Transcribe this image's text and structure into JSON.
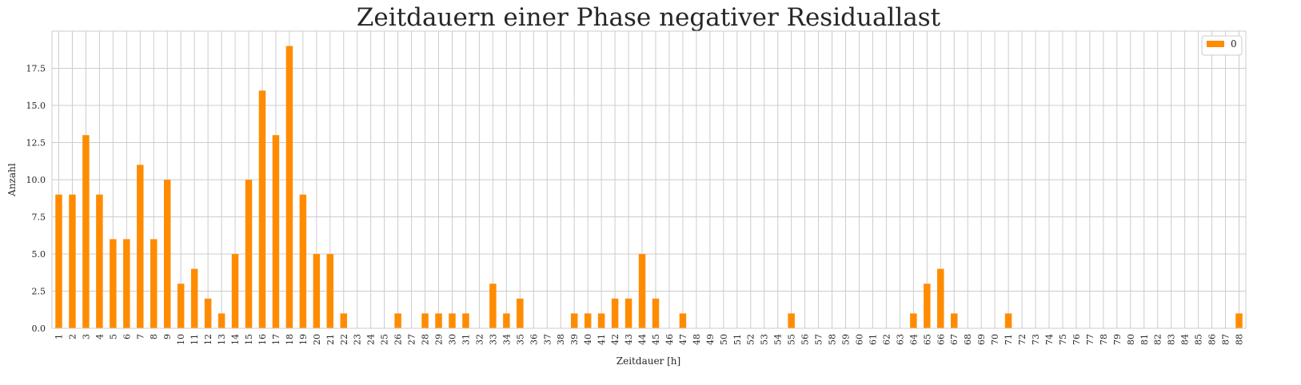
{
  "chart_data": {
    "type": "bar",
    "title": "Zeitdauern einer Phase negativer Residuallast",
    "xlabel": "Zeitdauer [h]",
    "ylabel": "Anzahl",
    "categories": [
      "1",
      "2",
      "3",
      "4",
      "5",
      "6",
      "7",
      "8",
      "9",
      "10",
      "11",
      "12",
      "13",
      "14",
      "15",
      "16",
      "17",
      "18",
      "19",
      "20",
      "21",
      "22",
      "23",
      "24",
      "25",
      "26",
      "27",
      "28",
      "29",
      "30",
      "31",
      "32",
      "33",
      "34",
      "35",
      "36",
      "37",
      "38",
      "39",
      "40",
      "41",
      "42",
      "43",
      "44",
      "45",
      "46",
      "47",
      "48",
      "49",
      "50",
      "51",
      "52",
      "53",
      "54",
      "55",
      "56",
      "57",
      "58",
      "59",
      "60",
      "61",
      "62",
      "63",
      "64",
      "65",
      "66",
      "67",
      "68",
      "69",
      "70",
      "71",
      "72",
      "73",
      "74",
      "75",
      "76",
      "77",
      "78",
      "79",
      "80",
      "81",
      "82",
      "83",
      "84",
      "85",
      "86",
      "87",
      "88"
    ],
    "series": [
      {
        "name": "0",
        "color": "#ff8c00",
        "values": [
          9,
          9,
          13,
          9,
          6,
          6,
          11,
          6,
          10,
          3,
          4,
          2,
          1,
          5,
          10,
          16,
          13,
          19,
          9,
          5,
          5,
          1,
          0,
          0,
          0,
          1,
          0,
          1,
          1,
          1,
          1,
          0,
          3,
          1,
          2,
          0,
          0,
          0,
          1,
          1,
          1,
          2,
          2,
          5,
          2,
          0,
          1,
          0,
          0,
          0,
          0,
          0,
          0,
          0,
          1,
          0,
          0,
          0,
          0,
          0,
          0,
          0,
          0,
          1,
          3,
          4,
          1,
          0,
          0,
          0,
          1,
          0,
          0,
          0,
          0,
          0,
          0,
          0,
          0,
          0,
          0,
          0,
          0,
          0,
          0,
          0,
          0,
          1
        ]
      }
    ],
    "ylim": [
      0,
      20
    ],
    "yticks": [
      0.0,
      2.5,
      5.0,
      7.5,
      10.0,
      12.5,
      15.0,
      17.5
    ],
    "ytick_labels": [
      "0.0",
      "2.5",
      "5.0",
      "7.5",
      "10.0",
      "12.5",
      "15.0",
      "17.5"
    ],
    "grid": true,
    "legend_position": "top-right"
  }
}
